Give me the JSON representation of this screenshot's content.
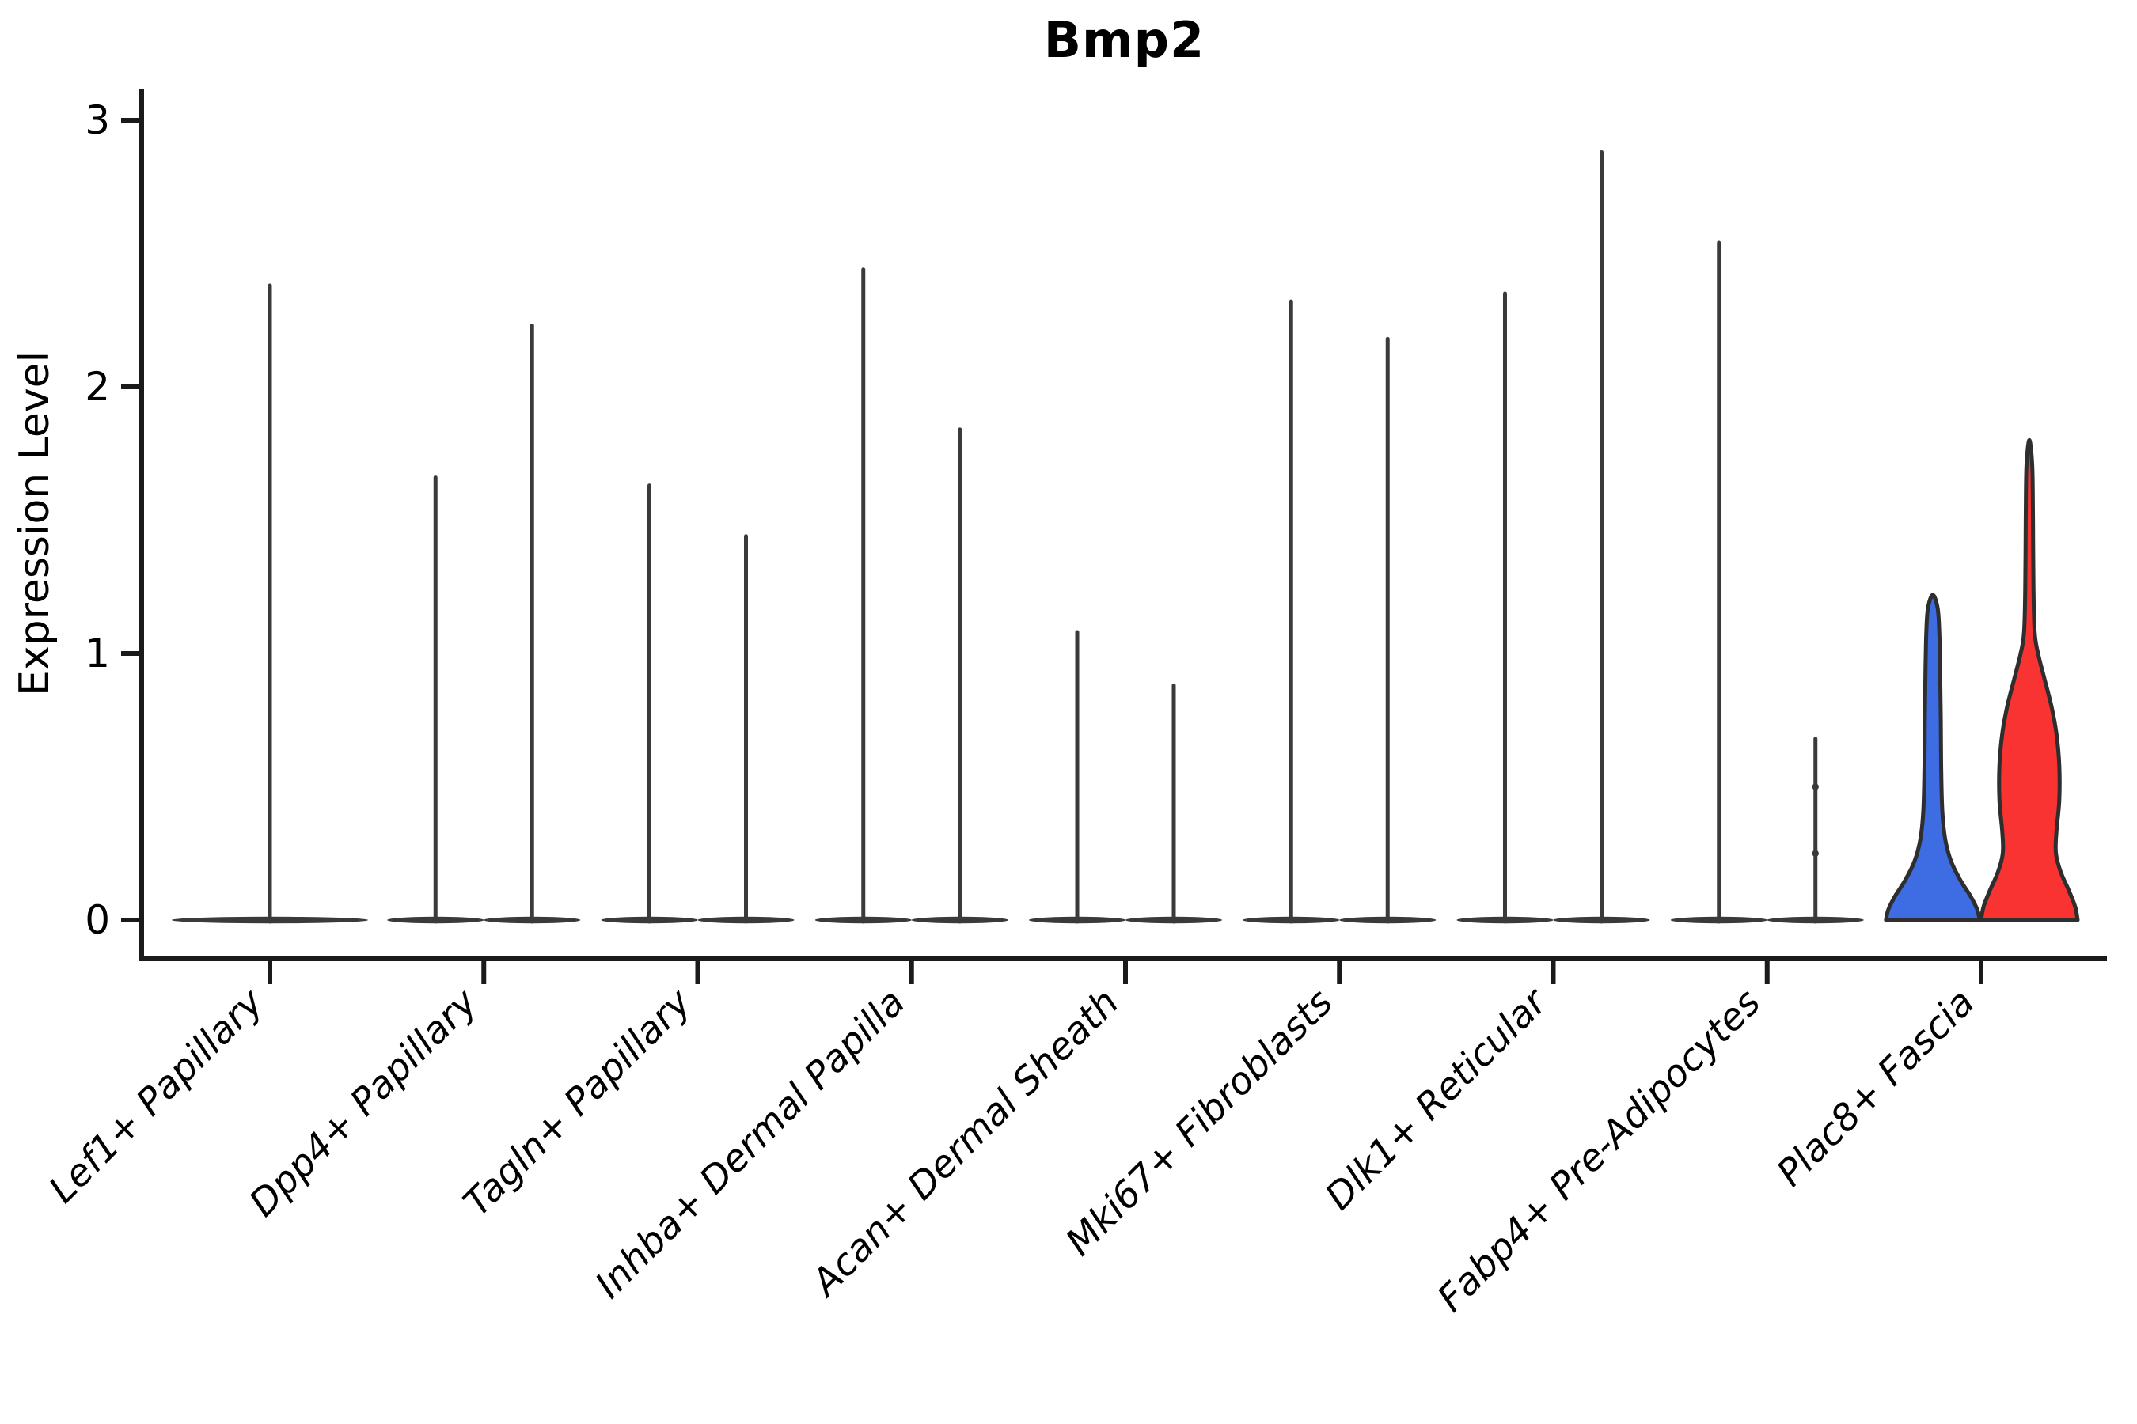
{
  "title": "Bmp2",
  "ylabel": "Expression Level",
  "chart_data": {
    "type": "violin",
    "title": "Bmp2",
    "xlabel": "",
    "ylabel": "Expression Level",
    "ylim": [
      0,
      3
    ],
    "yticks": [
      0,
      1,
      2,
      3
    ],
    "grid": false,
    "legend_position": "none",
    "x_tick_label_style": "italic, rotated 45deg",
    "categories": [
      "Lef1+ Papillary",
      "Dpp4+ Papillary",
      "Tagln+ Papillary",
      "Inhba+ Dermal Papilla",
      "Acan+ Dermal Sheath",
      "Mki67+ Fibroblasts",
      "Dlk1+ Reticular",
      "Fabp4+ Pre-Adipocytes",
      "Plac8+ Fascia"
    ],
    "colors": {
      "ink": "#1a1a1a",
      "violin_outline": "#2e2e2e",
      "spike": "#3a3a3a",
      "plac8_group1_fill": "#3E6CE3",
      "plac8_group2_fill": "#F93232"
    },
    "violins": [
      {
        "category": "Lef1+ Papillary",
        "groups": [
          {
            "style": "spike",
            "max": 2.38
          }
        ]
      },
      {
        "category": "Dpp4+ Papillary",
        "groups": [
          {
            "style": "spike",
            "max": 1.66
          },
          {
            "style": "spike",
            "max": 2.23
          }
        ]
      },
      {
        "category": "Tagln+ Papillary",
        "groups": [
          {
            "style": "spike",
            "max": 1.63
          },
          {
            "style": "spike",
            "max": 1.44
          }
        ]
      },
      {
        "category": "Inhba+ Dermal Papilla",
        "groups": [
          {
            "style": "spike",
            "max": 2.44
          },
          {
            "style": "spike",
            "max": 1.84
          }
        ]
      },
      {
        "category": "Acan+ Dermal Sheath",
        "groups": [
          {
            "style": "spike",
            "max": 1.08
          },
          {
            "style": "spike",
            "max": 0.88
          }
        ]
      },
      {
        "category": "Mki67+ Fibroblasts",
        "groups": [
          {
            "style": "spike",
            "max": 2.32
          },
          {
            "style": "spike",
            "max": 2.18
          }
        ]
      },
      {
        "category": "Dlk1+ Reticular",
        "groups": [
          {
            "style": "spike",
            "max": 2.35
          },
          {
            "style": "spike",
            "max": 2.88
          }
        ]
      },
      {
        "category": "Fabp4+ Pre-Adipocytes",
        "groups": [
          {
            "style": "spike",
            "max": 2.54
          },
          {
            "style": "spike",
            "max": 0.68,
            "dots": [
              0.25,
              0.5
            ]
          }
        ]
      },
      {
        "category": "Plac8+ Fascia",
        "groups": [
          {
            "style": "violin",
            "max": 1.22,
            "fill": "#3E6CE3",
            "profile": [
              [
                0,
                0.97
              ],
              [
                0.04,
                0.92
              ],
              [
                0.09,
                0.78
              ],
              [
                0.15,
                0.57
              ],
              [
                0.22,
                0.38
              ],
              [
                0.3,
                0.26
              ],
              [
                0.4,
                0.2
              ],
              [
                0.55,
                0.175
              ],
              [
                0.75,
                0.165
              ],
              [
                0.95,
                0.15
              ],
              [
                1.08,
                0.135
              ],
              [
                1.17,
                0.1
              ],
              [
                1.22,
                0
              ]
            ]
          },
          {
            "style": "violin",
            "max": 1.8,
            "fill": "#F93232",
            "profile": [
              [
                0,
                1.0
              ],
              [
                0.05,
                0.95
              ],
              [
                0.11,
                0.82
              ],
              [
                0.18,
                0.65
              ],
              [
                0.25,
                0.55
              ],
              [
                0.33,
                0.56
              ],
              [
                0.45,
                0.62
              ],
              [
                0.58,
                0.62
              ],
              [
                0.7,
                0.56
              ],
              [
                0.8,
                0.46
              ],
              [
                0.9,
                0.32
              ],
              [
                1.0,
                0.18
              ],
              [
                1.08,
                0.11
              ],
              [
                1.25,
                0.085
              ],
              [
                1.5,
                0.075
              ],
              [
                1.7,
                0.06
              ],
              [
                1.8,
                0
              ]
            ]
          }
        ]
      }
    ]
  }
}
